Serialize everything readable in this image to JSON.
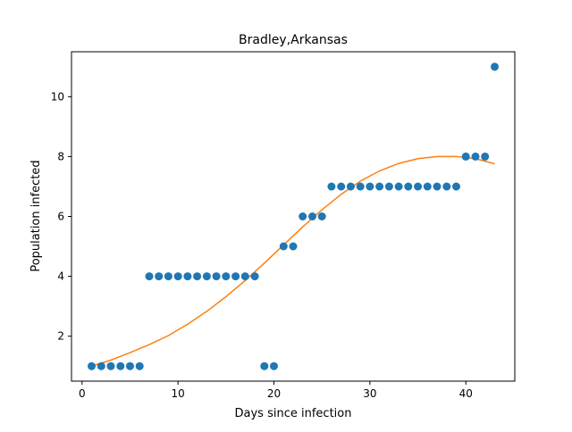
{
  "chart_data": {
    "type": "scatter",
    "title": "Bradley,Arkansas",
    "xlabel": "Days since infection",
    "ylabel": "Population infected",
    "xlim": [
      -1.1,
      45.1
    ],
    "ylim": [
      0.5,
      11.5
    ],
    "xticks": [
      0,
      10,
      20,
      30,
      40
    ],
    "yticks": [
      2,
      4,
      6,
      8,
      10
    ],
    "grid": false,
    "colors": {
      "points": "#1f77b4",
      "fit": "#ff7f0e"
    },
    "series": [
      {
        "kind": "scatter",
        "x": [
          1,
          2,
          3,
          4,
          5,
          6,
          7,
          8,
          9,
          10,
          11,
          12,
          13,
          14,
          15,
          16,
          17,
          18,
          19,
          20,
          21,
          22,
          23,
          24,
          25,
          26,
          27,
          28,
          29,
          30,
          31,
          32,
          33,
          34,
          35,
          36,
          37,
          38,
          39,
          40,
          41,
          42,
          43
        ],
        "y": [
          1,
          1,
          1,
          1,
          1,
          1,
          4,
          4,
          4,
          4,
          4,
          4,
          4,
          4,
          4,
          4,
          4,
          4,
          1,
          1,
          5,
          5,
          6,
          6,
          6,
          7,
          7,
          7,
          7,
          7,
          7,
          7,
          7,
          7,
          7,
          7,
          7,
          7,
          7,
          8,
          8,
          8,
          11
        ]
      },
      {
        "kind": "line",
        "x": [
          1,
          3,
          5,
          7,
          9,
          11,
          13,
          15,
          17,
          19,
          21,
          23,
          25,
          27,
          29,
          31,
          33,
          35,
          37,
          39,
          41,
          43
        ],
        "y": [
          1.0,
          1.2,
          1.45,
          1.72,
          2.02,
          2.4,
          2.83,
          3.32,
          3.86,
          4.44,
          5.05,
          5.65,
          6.22,
          6.74,
          7.18,
          7.52,
          7.77,
          7.93,
          8.0,
          8.0,
          7.93,
          7.76
        ]
      }
    ]
  }
}
